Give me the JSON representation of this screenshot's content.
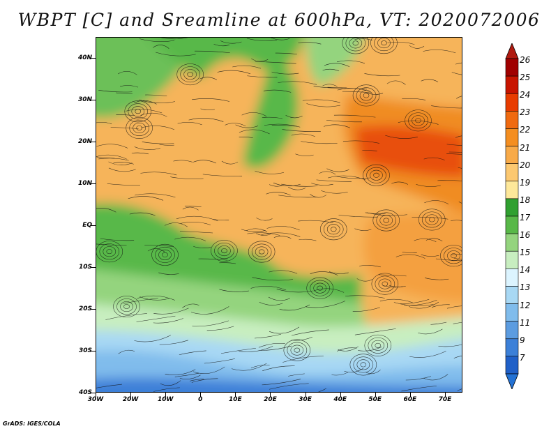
{
  "title": "WBPT [C] and Sreamline at 600hPa, VT: 2020072006",
  "credit": "GrADS: IGES/COLA",
  "map": {
    "lat_labels": [
      "40N",
      "30N",
      "20N",
      "10N",
      "EQ",
      "10S",
      "20S",
      "30S",
      "40S"
    ],
    "lon_labels": [
      "30W",
      "20W",
      "10W",
      "0",
      "10E",
      "20E",
      "30E",
      "40E",
      "50E",
      "60E",
      "70E"
    ],
    "lat_range": [
      -40,
      45
    ],
    "lon_range": [
      -30,
      75
    ]
  },
  "colorbar": {
    "labels": [
      "26",
      "25",
      "24",
      "23",
      "22",
      "21",
      "20",
      "19",
      "18",
      "17",
      "16",
      "15",
      "14",
      "13",
      "12",
      "11",
      "9",
      "7"
    ],
    "colors": [
      "#a00000",
      "#c81400",
      "#e83c00",
      "#f06a10",
      "#f48e20",
      "#f8aa48",
      "#fcc870",
      "#fee89a",
      "#30a030",
      "#58b848",
      "#94d47e",
      "#c8eec0",
      "#dcf4ff",
      "#a8d8f4",
      "#80bcec",
      "#5c9ce0",
      "#3c80d8",
      "#2060c8"
    ],
    "top_color": "#b01a10",
    "bottom_color": "#2472d4"
  }
}
